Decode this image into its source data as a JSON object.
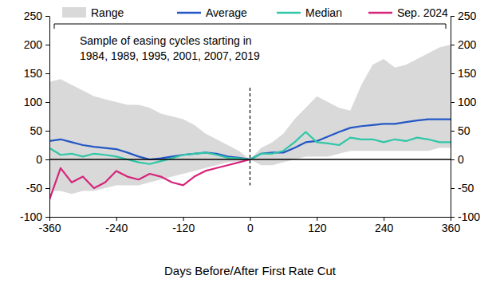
{
  "chart_data": {
    "type": "line",
    "x_label": "Days Before/After First Rate Cut",
    "annotations": [
      "Sample of easing cycles starting in",
      "1984, 1989, 1995, 2001, 2007, 2019"
    ],
    "x": [
      -360,
      -340,
      -320,
      -300,
      -280,
      -260,
      -240,
      -220,
      -200,
      -180,
      -160,
      -140,
      -120,
      -100,
      -80,
      -60,
      -40,
      -20,
      0,
      20,
      40,
      60,
      80,
      100,
      120,
      140,
      160,
      180,
      200,
      220,
      240,
      260,
      280,
      300,
      320,
      340,
      360
    ],
    "series": [
      {
        "name": "Range",
        "type": "area",
        "color": "#d9d9d9",
        "values": [
          135,
          140,
          130,
          120,
          110,
          105,
          100,
          95,
          95,
          90,
          80,
          75,
          70,
          60,
          45,
          35,
          25,
          15,
          0,
          20,
          30,
          45,
          70,
          90,
          110,
          100,
          90,
          85,
          130,
          165,
          175,
          160,
          165,
          175,
          185,
          195,
          200
        ],
        "low": [
          -55,
          -55,
          -60,
          -55,
          -55,
          -50,
          -45,
          -45,
          -45,
          -40,
          -35,
          -30,
          -25,
          -20,
          -15,
          -10,
          -5,
          -3,
          0,
          -10,
          -10,
          -5,
          0,
          5,
          5,
          5,
          10,
          15,
          15,
          15,
          15,
          15,
          15,
          15,
          15,
          20,
          20
        ]
      },
      {
        "name": "Average",
        "type": "line",
        "color": "#2457c5",
        "values": [
          32,
          35,
          30,
          25,
          22,
          20,
          18,
          12,
          5,
          0,
          2,
          5,
          8,
          10,
          12,
          10,
          5,
          3,
          0,
          10,
          12,
          12,
          20,
          30,
          32,
          40,
          48,
          55,
          58,
          60,
          62,
          62,
          65,
          68,
          70,
          70,
          70
        ]
      },
      {
        "name": "Median",
        "type": "line",
        "color": "#2fc7a6",
        "values": [
          20,
          8,
          10,
          5,
          10,
          8,
          5,
          0,
          -5,
          -8,
          -3,
          2,
          8,
          10,
          12,
          8,
          3,
          2,
          0,
          10,
          10,
          15,
          30,
          48,
          30,
          28,
          25,
          38,
          35,
          35,
          30,
          35,
          32,
          38,
          35,
          30,
          30
        ]
      },
      {
        "name": "Sep. 2024",
        "type": "line",
        "color": "#d6247a",
        "values": [
          -70,
          -15,
          -40,
          -30,
          -50,
          -40,
          -20,
          -30,
          -35,
          -25,
          -30,
          -40,
          -45,
          -30,
          -20,
          -15,
          -10,
          -5,
          0,
          null,
          null,
          null,
          null,
          null,
          null,
          null,
          null,
          null,
          null,
          null,
          null,
          null,
          null,
          null,
          null,
          null,
          null
        ]
      }
    ],
    "xlim": [
      -360,
      360
    ],
    "xticks": [
      -360,
      -240,
      -120,
      0,
      120,
      240,
      360
    ],
    "ylim": [
      -100,
      250
    ],
    "yticks": [
      -100,
      -50,
      0,
      50,
      100,
      150,
      200,
      250
    ],
    "legend": "top",
    "grid": false
  }
}
